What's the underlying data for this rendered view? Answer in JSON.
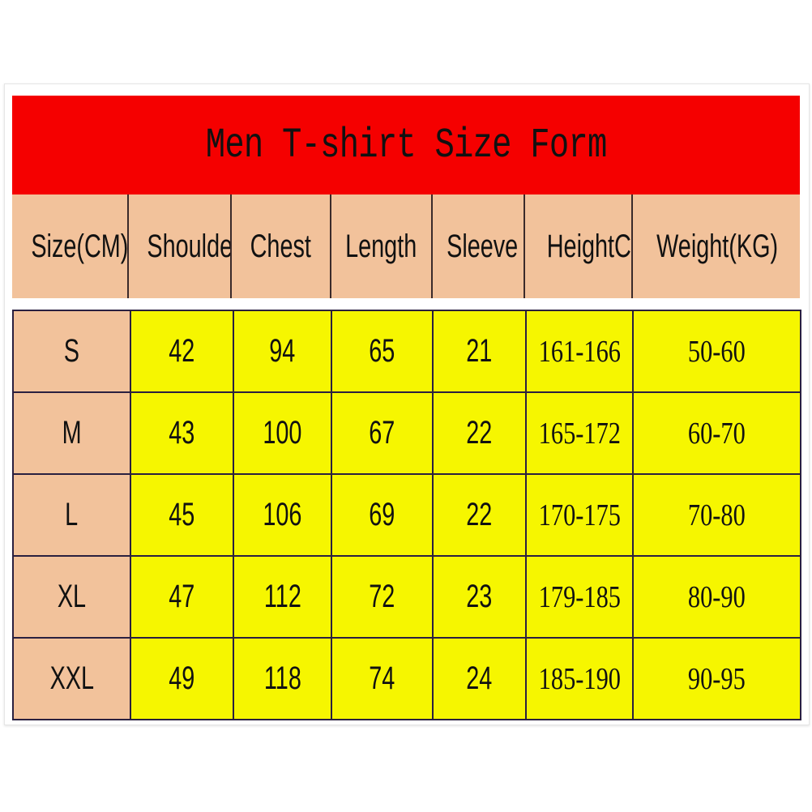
{
  "title": "Men T-shirt Size Form",
  "colors": {
    "title_bg": "#f50000",
    "header_bg": "#f2c29b",
    "cell_bg": "#f6f600"
  },
  "columns": [
    "Size(CM)",
    "Shoulder",
    "Chest",
    "Length",
    "Sleeve",
    "HeightCM)",
    "Weight(KG)"
  ],
  "rows": [
    [
      "S",
      "42",
      "94",
      "65",
      "21",
      "161-166",
      "50-60"
    ],
    [
      "M",
      "43",
      "100",
      "67",
      "22",
      "165-172",
      "60-70"
    ],
    [
      "L",
      "45",
      "106",
      "69",
      "22",
      "170-175",
      "70-80"
    ],
    [
      "XL",
      "47",
      "112",
      "72",
      "23",
      "179-185",
      "80-90"
    ],
    [
      "XXL",
      "49",
      "118",
      "74",
      "24",
      "185-190",
      "90-95"
    ]
  ]
}
